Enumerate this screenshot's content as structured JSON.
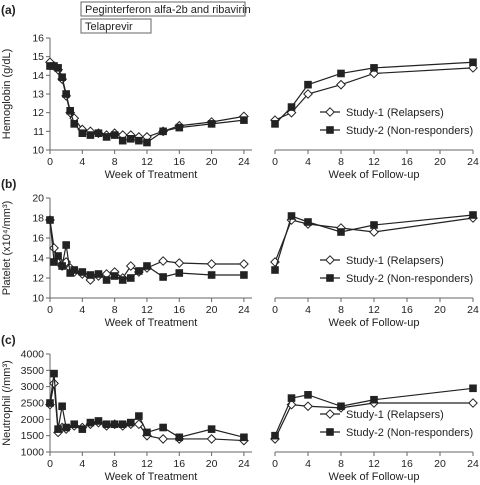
{
  "colors": {
    "axis": "#666666",
    "text": "#222222",
    "series_marker_open_fill": "#ffffff",
    "series_marker_filled_fill": "#222222",
    "line": "#222222"
  },
  "treatment_bars": {
    "peg": "Peginterferon alfa-2b and ribavirin",
    "tel": "Telaprevir"
  },
  "chart_data": [
    {
      "panel_label": "(a)",
      "type": "line",
      "ylabel": "Hemoglobin (g/dL)",
      "ylim": [
        10,
        16
      ],
      "yticks": [
        10,
        11,
        12,
        13,
        14,
        15,
        16
      ],
      "treatment": {
        "xlabel": "Week of Treatment",
        "xlim": [
          0,
          25
        ],
        "xticks": [
          0,
          4,
          8,
          12,
          16,
          20,
          24
        ],
        "series": [
          {
            "name": "Study-1 (Relapsers)",
            "marker": "diamond-open",
            "x": [
              0,
              0.5,
              1,
              1.5,
              2,
              2.5,
              3,
              4,
              5,
              6,
              7,
              8,
              9,
              10,
              11,
              12,
              14,
              16,
              20,
              24
            ],
            "y": [
              14.7,
              14.5,
              14.3,
              13.8,
              12.9,
              12.0,
              11.7,
              11.1,
              11.0,
              10.9,
              10.8,
              10.9,
              10.8,
              10.8,
              10.7,
              10.7,
              11.0,
              11.3,
              11.5,
              11.8
            ]
          },
          {
            "name": "Study-2 (Non-responders)",
            "marker": "square-filled",
            "x": [
              0,
              0.5,
              1,
              1.5,
              2,
              2.5,
              3,
              4,
              5,
              6,
              7,
              8,
              9,
              10,
              11,
              12,
              14,
              16,
              20,
              24
            ],
            "y": [
              14.5,
              14.5,
              14.4,
              13.9,
              13.0,
              12.1,
              11.4,
              10.9,
              10.8,
              10.9,
              10.7,
              10.8,
              10.5,
              10.6,
              10.5,
              10.4,
              11.0,
              11.2,
              11.4,
              11.6
            ]
          }
        ]
      },
      "followup": {
        "xlabel": "Week of Follow-up",
        "xlim": [
          0,
          24
        ],
        "xticks": [
          0,
          4,
          8,
          12,
          16,
          20,
          24
        ],
        "series": [
          {
            "name": "Study-1 (Relapsers)",
            "marker": "diamond-open",
            "x": [
              0,
              2,
              4,
              8,
              12,
              24
            ],
            "y": [
              11.6,
              12.0,
              13.0,
              13.5,
              14.1,
              14.4
            ]
          },
          {
            "name": "Study-2 (Non-responders)",
            "marker": "square-filled",
            "x": [
              0,
              2,
              4,
              8,
              12,
              24
            ],
            "y": [
              11.4,
              12.3,
              13.5,
              14.1,
              14.4,
              14.7
            ]
          }
        ]
      },
      "legend_position": "bottom-right"
    },
    {
      "panel_label": "(b)",
      "type": "line",
      "ylabel": "Platelet (x10⁴/mm³)",
      "ylim": [
        10,
        20
      ],
      "yticks": [
        10,
        12,
        14,
        16,
        18,
        20
      ],
      "treatment": {
        "xlabel": "Week of Treatment",
        "xlim": [
          0,
          25
        ],
        "xticks": [
          0,
          4,
          8,
          12,
          16,
          20,
          24
        ],
        "series": [
          {
            "name": "Study-1 (Relapsers)",
            "marker": "diamond-open",
            "x": [
              0,
              0.5,
              1,
              1.5,
              2,
              2.5,
              3,
              4,
              5,
              6,
              7,
              8,
              9,
              10,
              11,
              12,
              14,
              16,
              20,
              24
            ],
            "y": [
              17.8,
              15.0,
              13.8,
              13.2,
              13.6,
              13.0,
              12.6,
              12.4,
              11.8,
              12.2,
              12.4,
              12.6,
              12.0,
              13.2,
              12.6,
              13.0,
              13.7,
              13.5,
              13.4,
              13.4
            ]
          },
          {
            "name": "Study-2 (Non-responders)",
            "marker": "square-filled",
            "x": [
              0,
              0.5,
              1,
              1.5,
              2,
              2.5,
              3,
              4,
              5,
              6,
              7,
              8,
              9,
              10,
              11,
              12,
              14,
              16,
              20,
              24
            ],
            "y": [
              17.8,
              13.6,
              14.2,
              13.2,
              15.3,
              12.5,
              12.8,
              12.6,
              12.3,
              12.4,
              11.8,
              12.2,
              11.8,
              12.0,
              12.7,
              13.2,
              12.1,
              12.5,
              12.3,
              12.3
            ]
          }
        ]
      },
      "followup": {
        "xlabel": "Week of Follow-up",
        "xlim": [
          0,
          24
        ],
        "xticks": [
          0,
          4,
          8,
          12,
          16,
          20,
          24
        ],
        "series": [
          {
            "name": "Study-1 (Relapsers)",
            "marker": "diamond-open",
            "x": [
              0,
              2,
              4,
              8,
              12,
              24
            ],
            "y": [
              13.6,
              17.8,
              17.4,
              17.0,
              16.6,
              18.0
            ]
          },
          {
            "name": "Study-2 (Non-responders)",
            "marker": "square-filled",
            "x": [
              0,
              2,
              4,
              8,
              12,
              24
            ],
            "y": [
              12.8,
              18.2,
              17.6,
              16.6,
              17.3,
              18.3
            ]
          }
        ]
      },
      "legend_position": "bottom-right"
    },
    {
      "panel_label": "(c)",
      "type": "line",
      "ylabel": "Neutrophil (/mm³)",
      "ylim": [
        1000,
        4000
      ],
      "yticks": [
        1000,
        1500,
        2000,
        2500,
        3000,
        3500,
        4000
      ],
      "treatment": {
        "xlabel": "Week of Treatment",
        "xlim": [
          0,
          25
        ],
        "xticks": [
          0,
          4,
          8,
          12,
          16,
          20,
          24
        ],
        "series": [
          {
            "name": "Study-1 (Relapsers)",
            "marker": "diamond-open",
            "x": [
              0,
              0.5,
              1,
              1.5,
              2,
              3,
              4,
              5,
              6,
              7,
              8,
              9,
              10,
              11,
              12,
              14,
              16,
              20,
              24
            ],
            "y": [
              2450,
              3100,
              1600,
              1750,
              1700,
              1800,
              1750,
              1850,
              1900,
              1800,
              1850,
              1800,
              1850,
              1850,
              1500,
              1400,
              1400,
              1400,
              1350
            ]
          },
          {
            "name": "Study-2 (Non-responders)",
            "marker": "square-filled",
            "x": [
              0,
              0.5,
              1,
              1.5,
              2,
              3,
              4,
              5,
              6,
              7,
              8,
              9,
              10,
              11,
              12,
              14,
              16,
              20,
              24
            ],
            "y": [
              2500,
              3400,
              1700,
              2400,
              1750,
              1850,
              1700,
              1900,
              1950,
              1850,
              1850,
              1850,
              1900,
              2100,
              1600,
              1750,
              1450,
              1700,
              1450
            ]
          }
        ]
      },
      "followup": {
        "xlabel": "Week of Follow-up",
        "xlim": [
          0,
          24
        ],
        "xticks": [
          0,
          4,
          8,
          12,
          16,
          20,
          24
        ],
        "series": [
          {
            "name": "Study-1 (Relapsers)",
            "marker": "diamond-open",
            "x": [
              0,
              2,
              4,
              8,
              12,
              24
            ],
            "y": [
              1400,
              2450,
              2400,
              2350,
              2500,
              2500
            ]
          },
          {
            "name": "Study-2 (Non-responders)",
            "marker": "square-filled",
            "x": [
              0,
              2,
              4,
              8,
              12,
              24
            ],
            "y": [
              1500,
              2650,
              2750,
              2400,
              2600,
              2950
            ]
          }
        ]
      },
      "legend_position": "bottom-right"
    }
  ]
}
